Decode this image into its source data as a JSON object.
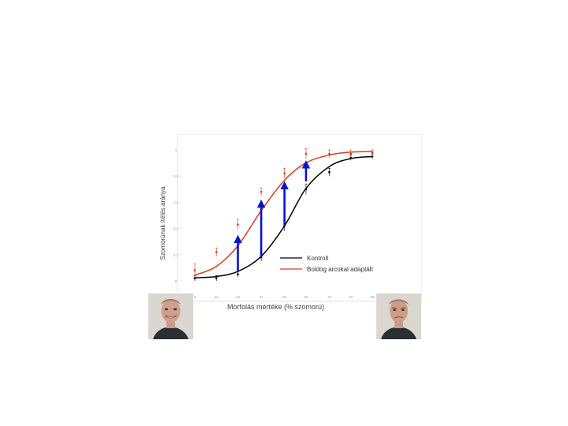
{
  "chart_data": {
    "type": "line",
    "xlabel": "Morfolás mértéke (% szomorú)",
    "ylabel": "Szomorúnak ítélés aránya",
    "categories": [
      "0",
      "12",
      "24",
      "37",
      "50",
      "62",
      "75",
      "87",
      "99"
    ],
    "x": [
      0,
      12,
      24,
      37,
      50,
      62,
      75,
      87,
      99
    ],
    "yticks": [
      "0",
      "0.2",
      "0.4",
      "0.6",
      "0.8",
      "1"
    ],
    "ylim": [
      0,
      1
    ],
    "xlim": [
      0,
      99
    ],
    "grid": false,
    "legend_position": "lower-right",
    "series": [
      {
        "name": "Kontroll",
        "color": "#000000",
        "points": [
          0.02,
          0.02,
          0.05,
          0.18,
          0.42,
          0.7,
          0.83,
          0.94,
          0.95
        ],
        "errors": [
          0.02,
          0.02,
          0.02,
          0.03,
          0.04,
          0.04,
          0.03,
          0.02,
          0.02
        ],
        "fit": [
          0.023,
          0.033,
          0.072,
          0.187,
          0.42,
          0.706,
          0.873,
          0.934,
          0.949
        ]
      },
      {
        "name": "Boldog arcokal adaptált",
        "color": "#e03a1e",
        "points": [
          0.08,
          0.22,
          0.43,
          0.68,
          0.82,
          0.97,
          0.97,
          0.97,
          0.98
        ],
        "errors": [
          0.05,
          0.03,
          0.04,
          0.03,
          0.04,
          0.04,
          0.03,
          0.03,
          0.02
        ],
        "fit": [
          0.044,
          0.11,
          0.268,
          0.536,
          0.769,
          0.901,
          0.961,
          0.983,
          0.988
        ]
      }
    ],
    "arrows": [
      {
        "x": 24,
        "from": 0.07,
        "to": 0.35
      },
      {
        "x": 37,
        "from": 0.18,
        "to": 0.62
      },
      {
        "x": 50,
        "from": 0.42,
        "to": 0.76
      },
      {
        "x": 62,
        "from": 0.76,
        "to": 0.92
      }
    ],
    "arrow_color": "#0a14c8"
  },
  "images": {
    "left_face": "happy-face-photo",
    "right_face": "sad-face-photo"
  }
}
